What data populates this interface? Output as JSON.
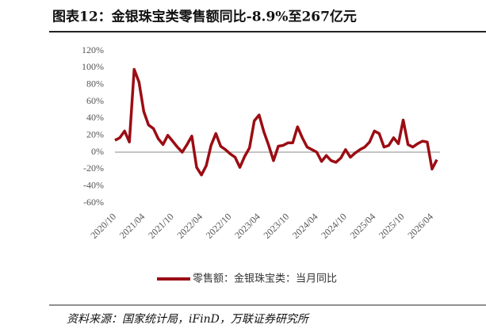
{
  "chart_data": {
    "type": "line",
    "title": "图表12：金银珠宝类零售额同比-8.9%至267亿元",
    "source": "资料来源：国家统计局，iFinD，万联证券研究所",
    "categories": [
      "2020/10",
      null,
      null,
      null,
      null,
      null,
      "2021/04",
      null,
      null,
      null,
      null,
      null,
      "2021/10",
      null,
      null,
      null,
      null,
      null,
      "2022/04",
      null,
      null,
      null,
      null,
      null,
      "2022/10",
      null,
      null,
      null,
      null,
      null,
      "2023/04",
      null,
      null,
      null,
      null,
      null,
      "2023/10",
      null,
      null,
      null,
      null,
      null,
      "2024/04",
      null,
      null,
      null,
      null,
      null,
      "2024/10",
      null,
      null,
      null,
      null,
      null,
      "2025/04",
      null,
      null,
      null,
      null,
      null,
      "2025/10",
      null,
      null,
      null,
      null,
      null,
      "2026/04",
      null
    ],
    "series": [
      {
        "name": "零售额：金银珠宝类：当月同比",
        "color": "#9b0d14",
        "values": [
          14,
          17,
          25,
          12,
          98,
          83,
          48,
          32,
          28,
          16,
          9,
          20,
          13,
          6,
          0,
          9,
          19,
          -18,
          -27,
          -16,
          8,
          22,
          7,
          3,
          -2,
          -6,
          -18,
          -5,
          5,
          37,
          44,
          24,
          8,
          -10,
          7,
          8,
          11,
          11,
          30,
          17,
          6,
          3,
          0,
          -11,
          -4,
          -10,
          -12,
          -7,
          3,
          -6,
          -1,
          3,
          6,
          12,
          25,
          22,
          6,
          8,
          17,
          10,
          38,
          9,
          6,
          10,
          13,
          12,
          -20,
          -8.9
        ]
      }
    ],
    "ylim": [
      -60,
      120
    ],
    "yticks": [
      {
        "value": -60,
        "label": "-60%"
      },
      {
        "value": -40,
        "label": "-40%"
      },
      {
        "value": -20,
        "label": "-20%"
      },
      {
        "value": 0,
        "label": "0%"
      },
      {
        "value": 20,
        "label": "20%"
      },
      {
        "value": 40,
        "label": "40%"
      },
      {
        "value": 60,
        "label": "60%"
      },
      {
        "value": 80,
        "label": "80%"
      },
      {
        "value": 100,
        "label": "100%"
      },
      {
        "value": 120,
        "label": "120%"
      }
    ],
    "legend": "bottom"
  }
}
